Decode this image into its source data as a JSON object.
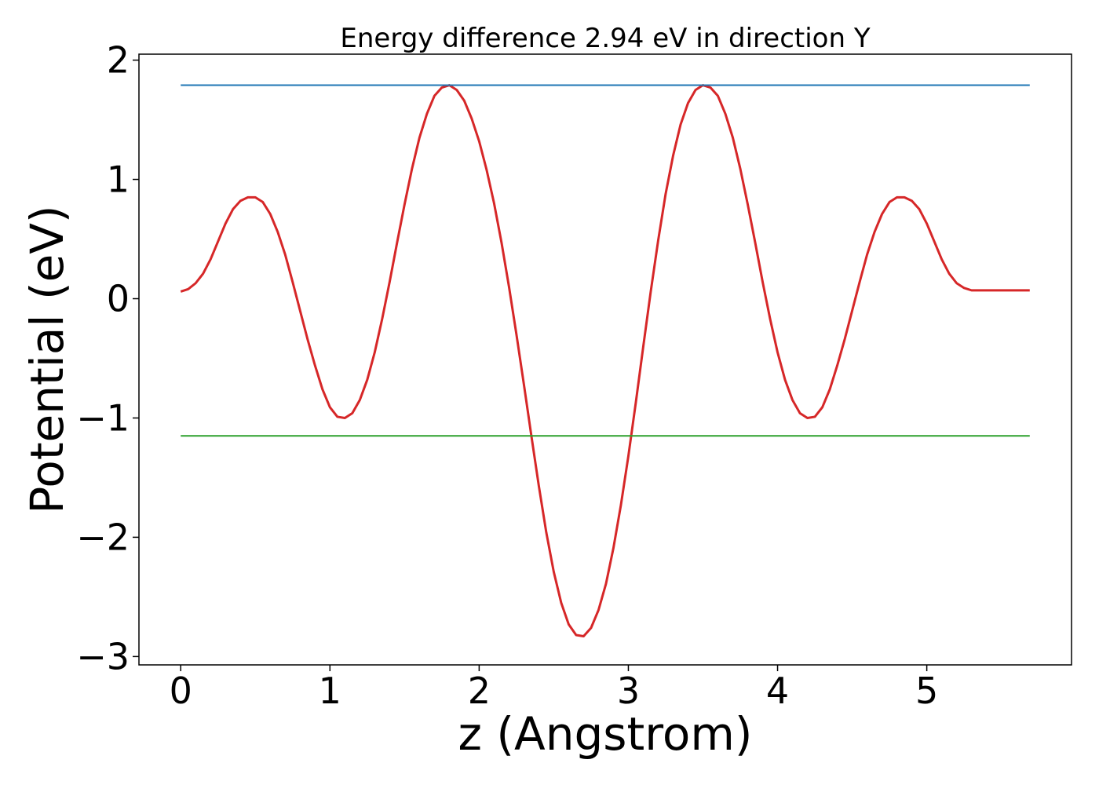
{
  "chart_data": {
    "type": "line",
    "title": "Energy difference 2.94 eV in direction Y",
    "xlabel": "z (Angstrom)",
    "ylabel": "Potential (eV)",
    "xlim": [
      -0.28,
      5.97
    ],
    "ylim": [
      -3.07,
      2.05
    ],
    "xticks": [
      0,
      1,
      2,
      3,
      4,
      5
    ],
    "yticks": [
      -3,
      -2,
      -1,
      0,
      1,
      2
    ],
    "xtick_labels": [
      "0",
      "1",
      "2",
      "3",
      "4",
      "5"
    ],
    "ytick_labels": [
      "−3",
      "−2",
      "−1",
      "0",
      "1",
      "2"
    ],
    "grid": false,
    "series": [
      {
        "color": "#d62728",
        "x": [
          0.0,
          0.05,
          0.1,
          0.15,
          0.2,
          0.25,
          0.3,
          0.35,
          0.4,
          0.45,
          0.5,
          0.55,
          0.6,
          0.65,
          0.7,
          0.75,
          0.8,
          0.85,
          0.9,
          0.95,
          1.0,
          1.05,
          1.1,
          1.15,
          1.2,
          1.25,
          1.3,
          1.35,
          1.4,
          1.45,
          1.5,
          1.55,
          1.6,
          1.65,
          1.7,
          1.75,
          1.8,
          1.85,
          1.9,
          1.95,
          2.0,
          2.05,
          2.1,
          2.15,
          2.2,
          2.25,
          2.3,
          2.35,
          2.4,
          2.45,
          2.5,
          2.55,
          2.6,
          2.65,
          2.7,
          2.75,
          2.8,
          2.85,
          2.9,
          2.95,
          3.0,
          3.05,
          3.1,
          3.15,
          3.2,
          3.25,
          3.3,
          3.35,
          3.4,
          3.45,
          3.5,
          3.55,
          3.6,
          3.65,
          3.7,
          3.75,
          3.8,
          3.85,
          3.9,
          3.95,
          4.0,
          4.05,
          4.1,
          4.15,
          4.2,
          4.25,
          4.3,
          4.35,
          4.4,
          4.45,
          4.5,
          4.55,
          4.6,
          4.65,
          4.7,
          4.75,
          4.8,
          4.85,
          4.9,
          4.95,
          5.0,
          5.05,
          5.1,
          5.15,
          5.2,
          5.25,
          5.3,
          5.35,
          5.4,
          5.45,
          5.5,
          5.55,
          5.6,
          5.65,
          5.69
        ],
        "y": [
          0.06,
          0.08,
          0.13,
          0.21,
          0.33,
          0.48,
          0.63,
          0.75,
          0.82,
          0.85,
          0.85,
          0.81,
          0.71,
          0.56,
          0.37,
          0.14,
          -0.1,
          -0.34,
          -0.56,
          -0.76,
          -0.91,
          -0.99,
          -1.0,
          -0.96,
          -0.85,
          -0.68,
          -0.45,
          -0.17,
          0.14,
          0.47,
          0.79,
          1.09,
          1.35,
          1.55,
          1.7,
          1.77,
          1.79,
          1.75,
          1.66,
          1.51,
          1.32,
          1.08,
          0.8,
          0.47,
          0.1,
          -0.3,
          -0.72,
          -1.15,
          -1.57,
          -1.96,
          -2.29,
          -2.55,
          -2.73,
          -2.82,
          -2.83,
          -2.76,
          -2.61,
          -2.39,
          -2.09,
          -1.73,
          -1.32,
          -0.87,
          -0.4,
          0.06,
          0.49,
          0.88,
          1.2,
          1.46,
          1.64,
          1.75,
          1.79,
          1.77,
          1.7,
          1.55,
          1.35,
          1.09,
          0.79,
          0.47,
          0.14,
          -0.17,
          -0.45,
          -0.68,
          -0.85,
          -0.96,
          -1.0,
          -0.99,
          -0.91,
          -0.76,
          -0.56,
          -0.34,
          -0.1,
          0.14,
          0.37,
          0.56,
          0.71,
          0.81,
          0.85,
          0.85,
          0.82,
          0.75,
          0.63,
          0.48,
          0.33,
          0.21,
          0.13,
          0.09,
          0.07,
          0.07,
          0.07,
          0.07,
          0.07,
          0.07,
          0.07,
          0.07,
          0.07
        ]
      },
      {
        "color": "#1f77b4",
        "x": [
          0.0,
          5.69
        ],
        "y": [
          1.79,
          1.79
        ]
      },
      {
        "color": "#2ca02c",
        "x": [
          0.0,
          5.69
        ],
        "y": [
          -1.15,
          -1.15
        ]
      }
    ]
  }
}
